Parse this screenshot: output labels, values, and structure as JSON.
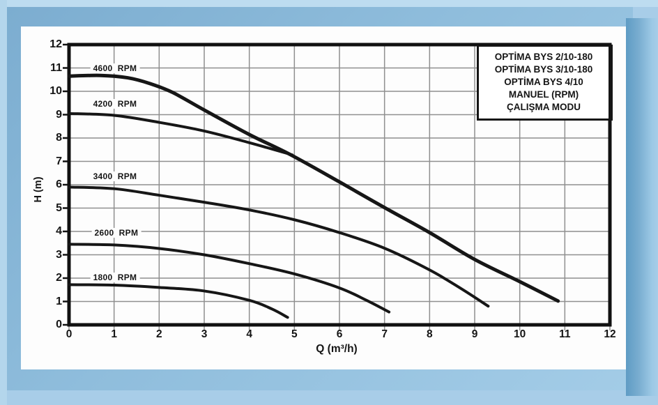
{
  "window": {
    "background_color": "#a8cde8",
    "paper_color": "#fdfdfd"
  },
  "legend": {
    "lines": [
      "OPTİMA BYS 2/10-180",
      "OPTİMA BYS 3/10-180",
      "OPTİMA BYS 4/10",
      "MANUEL (RPM)",
      "ÇALIŞMA MODU"
    ]
  },
  "chart_data": {
    "type": "line",
    "title": "",
    "xlabel": "Q (m³/h)",
    "ylabel": "H (m)",
    "xlim": [
      0,
      12
    ],
    "ylim": [
      0,
      12
    ],
    "x_ticks": [
      0,
      1,
      2,
      3,
      4,
      5,
      6,
      7,
      8,
      9,
      10,
      11,
      12
    ],
    "y_ticks": [
      0,
      1,
      2,
      3,
      4,
      5,
      6,
      7,
      8,
      9,
      10,
      11,
      12
    ],
    "grid": true,
    "grid_color": "#8f8f8f",
    "axis_color": "#111111",
    "curve_color": "#161616",
    "legend_position": "top-right",
    "series": [
      {
        "name": "4600 RPM",
        "label": "4600  RPM",
        "label_pos": [
          1.02,
          11.0
        ],
        "points": [
          [
            0,
            10.65
          ],
          [
            0.7,
            10.68
          ],
          [
            1.3,
            10.58
          ],
          [
            1.8,
            10.33
          ],
          [
            2.3,
            9.95
          ],
          [
            3,
            9.2
          ],
          [
            4,
            8.15
          ],
          [
            4.9,
            7.3
          ],
          [
            6,
            6.12
          ],
          [
            7,
            5.02
          ],
          [
            8,
            3.95
          ],
          [
            9,
            2.8
          ],
          [
            10,
            1.85
          ],
          [
            10.85,
            1.02
          ]
        ]
      },
      {
        "name": "4200 RPM",
        "label": "4200  RPM",
        "label_pos": [
          1.02,
          9.45
        ],
        "points": [
          [
            0,
            9.05
          ],
          [
            1,
            8.97
          ],
          [
            2,
            8.67
          ],
          [
            3,
            8.3
          ],
          [
            4,
            7.8
          ],
          [
            4.95,
            7.28
          ]
        ]
      },
      {
        "name": "3400 RPM",
        "label": "3400  RPM",
        "label_pos": [
          1.02,
          6.35
        ],
        "points": [
          [
            0,
            5.9
          ],
          [
            1,
            5.83
          ],
          [
            2,
            5.55
          ],
          [
            3,
            5.25
          ],
          [
            4,
            4.92
          ],
          [
            5,
            4.5
          ],
          [
            6,
            3.95
          ],
          [
            7,
            3.28
          ],
          [
            8,
            2.35
          ],
          [
            8.7,
            1.55
          ],
          [
            9.3,
            0.8
          ]
        ]
      },
      {
        "name": "2600 RPM",
        "label": "2600  RPM",
        "label_pos": [
          1.05,
          3.95
        ],
        "points": [
          [
            0,
            3.45
          ],
          [
            1,
            3.42
          ],
          [
            2,
            3.27
          ],
          [
            3,
            3.0
          ],
          [
            4,
            2.62
          ],
          [
            5,
            2.18
          ],
          [
            6,
            1.58
          ],
          [
            6.6,
            1.05
          ],
          [
            7.1,
            0.55
          ]
        ]
      },
      {
        "name": "1800 RPM",
        "label": "1800  RPM",
        "label_pos": [
          1.02,
          2.03
        ],
        "points": [
          [
            0,
            1.72
          ],
          [
            1,
            1.7
          ],
          [
            2,
            1.6
          ],
          [
            3,
            1.45
          ],
          [
            4,
            1.05
          ],
          [
            4.5,
            0.68
          ],
          [
            4.85,
            0.32
          ]
        ]
      }
    ]
  }
}
